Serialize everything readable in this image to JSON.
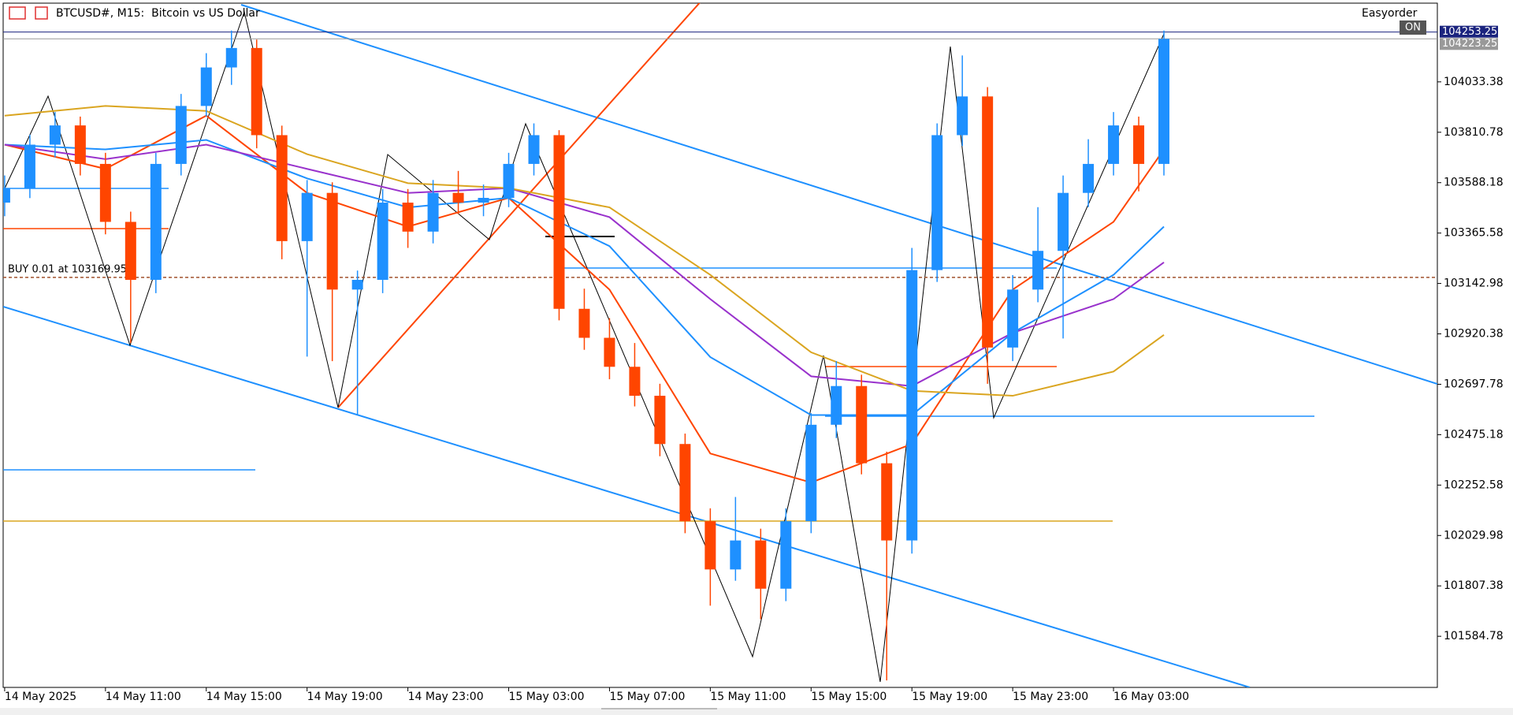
{
  "chart_data": {
    "type": "candlestick",
    "title": "BTCUSD#, M15:  Bitcoin vs US Dollar",
    "x": [
      0,
      1,
      2,
      3,
      4,
      5,
      6,
      7,
      8,
      9,
      10,
      11,
      12,
      13,
      14,
      15,
      16,
      17,
      18,
      19,
      20,
      21,
      22,
      23,
      24,
      25,
      26,
      27,
      28,
      29,
      30,
      31,
      32,
      33,
      34,
      35,
      36,
      37,
      38,
      39,
      40,
      41,
      42,
      43,
      44,
      45,
      46
    ],
    "open": [
      103500,
      103564,
      103756,
      103841,
      103671,
      103415,
      103159,
      103671,
      103927,
      104097,
      104183,
      103798,
      103330,
      103543,
      103116,
      103159,
      103500,
      103372,
      103543,
      103500,
      103521,
      103671,
      103798,
      103031,
      102903,
      102775,
      102647,
      102434,
      102093,
      101880,
      102008,
      101795,
      102093,
      102519,
      102690,
      102349,
      102008,
      103202,
      103798,
      103969,
      102860,
      103116,
      103287,
      103543,
      103671,
      103841,
      103671
    ],
    "high": [
      103620,
      103800,
      103900,
      103880,
      103720,
      103460,
      103720,
      103980,
      104160,
      104260,
      104220,
      103840,
      103600,
      103590,
      103200,
      103560,
      103560,
      103600,
      103640,
      103580,
      103720,
      103850,
      103820,
      103120,
      102990,
      102880,
      102700,
      102480,
      102150,
      102200,
      102060,
      102150,
      102570,
      102800,
      102740,
      102400,
      103300,
      103850,
      104150,
      104010,
      103180,
      103480,
      103620,
      103780,
      103900,
      103880,
      104260
    ],
    "low": [
      103440,
      103520,
      103700,
      103620,
      103360,
      102880,
      103100,
      103620,
      103880,
      104020,
      103740,
      103250,
      102820,
      102800,
      102560,
      103100,
      103300,
      103320,
      103450,
      103440,
      103480,
      103620,
      102980,
      102850,
      102720,
      102600,
      102380,
      102040,
      101720,
      101830,
      101660,
      101740,
      102040,
      102460,
      102300,
      101390,
      101950,
      103150,
      103750,
      102700,
      102800,
      103060,
      102900,
      103480,
      103620,
      103550,
      103620
    ],
    "close": [
      103564,
      103756,
      103841,
      103671,
      103415,
      103159,
      103671,
      103927,
      104097,
      104183,
      103798,
      103330,
      103543,
      103116,
      103159,
      103500,
      103372,
      103543,
      103500,
      103521,
      103671,
      103798,
      103031,
      102903,
      102775,
      102647,
      102434,
      102093,
      101880,
      102008,
      101795,
      102093,
      102519,
      102690,
      102349,
      102008,
      103202,
      103798,
      103969,
      102860,
      103116,
      103287,
      103543,
      103671,
      103841,
      103671,
      104223
    ],
    "up_color": "#1e90ff",
    "down_color": "#ff4500",
    "overlays": [
      {
        "color": "#ff4500",
        "x": [
          0,
          4,
          8,
          12,
          16,
          20,
          24,
          28,
          32,
          36,
          40,
          44,
          46
        ],
        "values": [
          103756,
          103649,
          103884,
          103543,
          103394,
          103521,
          103116,
          102392,
          102264,
          102434,
          103116,
          103415,
          103735
        ]
      },
      {
        "color": "#1e90ff",
        "x": [
          0,
          4,
          8,
          12,
          16,
          20,
          24,
          28,
          32,
          36,
          40,
          44,
          46
        ],
        "values": [
          103756,
          103735,
          103777,
          103607,
          103479,
          103521,
          103308,
          102818,
          102562,
          102562,
          102925,
          103181,
          103394
        ]
      },
      {
        "color": "#9932cc",
        "x": [
          0,
          4,
          8,
          12,
          16,
          20,
          24,
          28,
          32,
          36,
          40,
          44,
          46
        ],
        "values": [
          103756,
          103692,
          103756,
          103649,
          103543,
          103564,
          103436,
          103074,
          102733,
          102690,
          102925,
          103074,
          103236
        ]
      },
      {
        "color": "#daa520",
        "x": [
          0,
          4,
          8,
          12,
          16,
          20,
          24,
          28,
          32,
          36,
          40,
          44,
          46
        ],
        "values": [
          103884,
          103927,
          103905,
          103714,
          103586,
          103564,
          103479,
          103181,
          102839,
          102669,
          102647,
          102754,
          102916
        ]
      }
    ],
    "xlim": [
      -0.06,
      56.85
    ],
    "xticks": [
      {
        "value": 0,
        "label": "14 May 2025"
      },
      {
        "value": 4,
        "label": "14 May 11:00"
      },
      {
        "value": 8,
        "label": "14 May 15:00"
      },
      {
        "value": 12,
        "label": "14 May 19:00"
      },
      {
        "value": 16,
        "label": "14 May 23:00"
      },
      {
        "value": 20,
        "label": "15 May 03:00"
      },
      {
        "value": 24,
        "label": "15 May 07:00"
      },
      {
        "value": 28,
        "label": "15 May 11:00"
      },
      {
        "value": 32,
        "label": "15 May 15:00"
      },
      {
        "value": 36,
        "label": "15 May 19:00"
      },
      {
        "value": 40,
        "label": "15 May 23:00"
      },
      {
        "value": 44,
        "label": "16 May 03:00"
      }
    ],
    "ylim": [
      101359,
      104374
    ],
    "yticks": [
      104033.38,
      103810.78,
      103588.18,
      103365.58,
      103142.98,
      102920.38,
      102697.78,
      102475.18,
      102252.58,
      102029.98,
      101807.38,
      101584.78
    ],
    "ask_price": 104253.25,
    "bid_price": 104223.25,
    "order": {
      "label": "BUY 0.01 at 103169.95",
      "price": 103169.95
    }
  },
  "panel_label": "Easyorder",
  "toggle_label": "ON"
}
